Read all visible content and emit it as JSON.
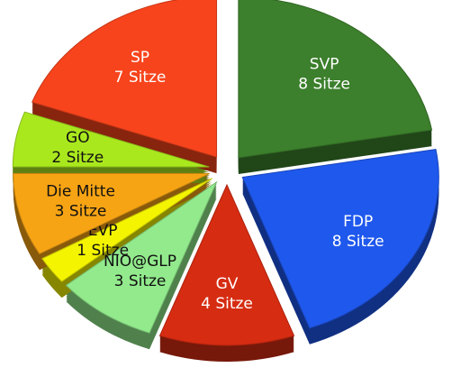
{
  "chart_data": {
    "type": "pie",
    "categories": [
      "SVP",
      "FDP",
      "GV",
      "NIO@GLP",
      "EVP",
      "Die Mitte",
      "GO",
      "SP"
    ],
    "values": [
      8,
      8,
      4,
      3,
      1,
      3,
      2,
      7
    ],
    "value_labels": [
      "8 Sitze",
      "8 Sitze",
      "4 Sitze",
      "3 Sitze",
      "1 Sitze",
      "3 Sitze",
      "2 Sitze",
      "7 Sitze"
    ],
    "colors": [
      "#3c7f2c",
      "#1f58ec",
      "#d62c12",
      "#92ea8c",
      "#f4f400",
      "#f7a414",
      "#aae81e",
      "#f7441c"
    ]
  }
}
